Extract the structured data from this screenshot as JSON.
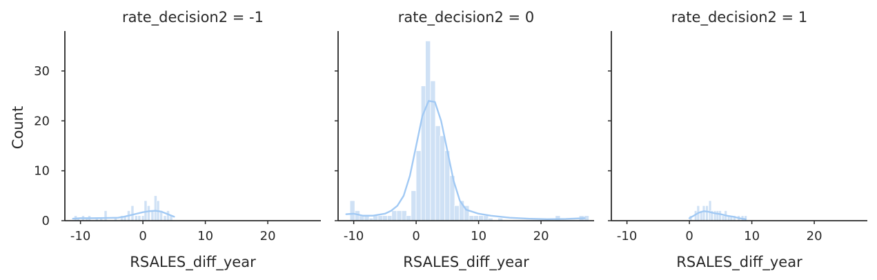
{
  "chart_data": {
    "type": "histogram",
    "facet_by": "rate_decision2",
    "xlabel": "RSALES_diff_year",
    "ylabel": "Count",
    "xlim": [
      -12.5,
      28.5
    ],
    "ylim": [
      0,
      38
    ],
    "xticks": [
      -10,
      0,
      10,
      20
    ],
    "yticks": [
      0,
      10,
      20,
      30
    ],
    "kde": true,
    "colors": {
      "bar": "#cfe1f5",
      "kde": "#a1c9f4",
      "axis": "#262626"
    },
    "panels": [
      {
        "title": "rate_decision2 = -1",
        "bins": [
          [
            -11,
            1
          ],
          [
            -10.6,
            0.5
          ],
          [
            -9.8,
            1
          ],
          [
            -9.2,
            0.5
          ],
          [
            -8.8,
            1
          ],
          [
            -7.6,
            0.5
          ],
          [
            -6.9,
            0.5
          ],
          [
            -6.2,
            2
          ],
          [
            -4.6,
            0.5
          ],
          [
            -3.6,
            1
          ],
          [
            -3.1,
            1
          ],
          [
            -2.5,
            2
          ],
          [
            -1.9,
            3
          ],
          [
            -1.3,
            1
          ],
          [
            -0.8,
            1
          ],
          [
            -0.2,
            1
          ],
          [
            0.2,
            4
          ],
          [
            0.7,
            3
          ],
          [
            1.3,
            2
          ],
          [
            1.8,
            5
          ],
          [
            2.2,
            4
          ],
          [
            2.7,
            2
          ],
          [
            3.3,
            1
          ],
          [
            3.8,
            2
          ],
          [
            4.3,
            1
          ]
        ],
        "bin_width": 0.45,
        "kde": [
          [
            -11.2,
            0.4
          ],
          [
            -10,
            0.5
          ],
          [
            -8,
            0.5
          ],
          [
            -6,
            0.55
          ],
          [
            -4,
            0.6
          ],
          [
            -3,
            0.8
          ],
          [
            -2,
            1.1
          ],
          [
            -1,
            1.4
          ],
          [
            0,
            1.7
          ],
          [
            1,
            1.9
          ],
          [
            2,
            2.0
          ],
          [
            3,
            1.8
          ],
          [
            4,
            1.3
          ],
          [
            5,
            0.8
          ]
        ]
      },
      {
        "title": "rate_decision2 = 0",
        "bins": [
          [
            -10.6,
            4
          ],
          [
            -9.8,
            2
          ],
          [
            -9.1,
            1
          ],
          [
            -8.3,
            1
          ],
          [
            -7.5,
            0.5
          ],
          [
            -6.9,
            1
          ],
          [
            -6.1,
            1
          ],
          [
            -5.4,
            1
          ],
          [
            -4.6,
            1
          ],
          [
            -3.9,
            2
          ],
          [
            -3.1,
            2
          ],
          [
            -2.3,
            2
          ],
          [
            -1.6,
            1
          ],
          [
            -0.8,
            6
          ],
          [
            0,
            14
          ],
          [
            0.8,
            27
          ],
          [
            1.5,
            36
          ],
          [
            2.3,
            28
          ],
          [
            3.1,
            19
          ],
          [
            3.8,
            17
          ],
          [
            4.6,
            14
          ],
          [
            5.4,
            9
          ],
          [
            6.1,
            3
          ],
          [
            6.9,
            4
          ],
          [
            7.7,
            3
          ],
          [
            8.5,
            1
          ],
          [
            9.2,
            1
          ],
          [
            10,
            1
          ],
          [
            10.8,
            1
          ],
          [
            11.5,
            0.5
          ],
          [
            13.1,
            0.5
          ],
          [
            22.3,
            1
          ],
          [
            26.1,
            1
          ],
          [
            26.9,
            1
          ]
        ],
        "bin_width": 0.77,
        "kde": [
          [
            -11.2,
            1.3
          ],
          [
            -10,
            1.4
          ],
          [
            -8.5,
            1.0
          ],
          [
            -7,
            1.0
          ],
          [
            -5,
            1.4
          ],
          [
            -4,
            2.0
          ],
          [
            -3,
            3.0
          ],
          [
            -2,
            5.0
          ],
          [
            -1,
            9.0
          ],
          [
            0,
            15.0
          ],
          [
            1,
            21.0
          ],
          [
            2,
            24.0
          ],
          [
            3,
            23.8
          ],
          [
            4,
            20.0
          ],
          [
            5,
            14.0
          ],
          [
            6,
            8.0
          ],
          [
            7,
            4.0
          ],
          [
            8,
            2.2
          ],
          [
            10,
            1.4
          ],
          [
            12,
            1.0
          ],
          [
            15,
            0.6
          ],
          [
            18,
            0.4
          ],
          [
            21,
            0.3
          ],
          [
            24,
            0.35
          ],
          [
            27,
            0.5
          ]
        ]
      },
      {
        "title": "rate_decision2 = 1",
        "bins": [
          [
            0,
            1
          ],
          [
            0.8,
            2
          ],
          [
            1.2,
            3
          ],
          [
            1.7,
            2
          ],
          [
            2.1,
            3
          ],
          [
            2.6,
            3
          ],
          [
            3.1,
            4
          ],
          [
            3.4,
            2
          ],
          [
            3.9,
            2
          ],
          [
            4.3,
            2
          ],
          [
            4.7,
            2
          ],
          [
            5.2,
            1
          ],
          [
            5.6,
            2
          ],
          [
            6.1,
            1
          ],
          [
            6.5,
            1
          ],
          [
            7,
            1
          ],
          [
            7.7,
            1
          ],
          [
            8.3,
            1
          ],
          [
            8.8,
            1
          ]
        ],
        "bin_width": 0.42,
        "kde": [
          [
            0,
            0.5
          ],
          [
            0.7,
            1.0
          ],
          [
            1.5,
            1.6
          ],
          [
            2.3,
            1.9
          ],
          [
            3,
            1.8
          ],
          [
            4,
            1.5
          ],
          [
            5,
            1.3
          ],
          [
            6,
            1.0
          ],
          [
            7,
            0.8
          ],
          [
            8,
            0.5
          ],
          [
            9,
            0.3
          ]
        ]
      }
    ]
  }
}
